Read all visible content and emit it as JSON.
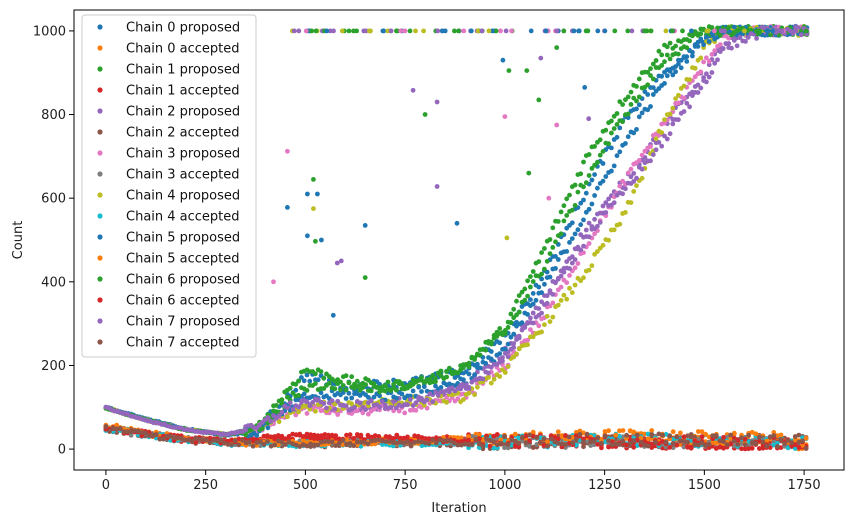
{
  "chart_data": {
    "type": "scatter",
    "title": "",
    "xlabel": "Iteration",
    "ylabel": "Count",
    "xlim": [
      -80,
      1850
    ],
    "ylim": [
      -50,
      1050
    ],
    "x_ticks": [
      0,
      250,
      500,
      750,
      1000,
      1250,
      1500,
      1750
    ],
    "y_ticks": [
      0,
      200,
      400,
      600,
      800,
      1000
    ],
    "grid": false,
    "legend_position": "upper-left",
    "series": [
      {
        "name": "Chain 0 proposed",
        "color": "#1f77b4",
        "kind": "proposed",
        "offset": 0,
        "x": [
          0,
          100,
          200,
          300,
          380,
          450,
          500,
          600,
          700,
          800,
          900,
          1000,
          1100,
          1200,
          1300,
          1400,
          1500,
          1550,
          1650,
          1760
        ],
        "y": [
          100,
          72,
          48,
          34,
          45,
          120,
          175,
          150,
          155,
          165,
          185,
          270,
          420,
          610,
          790,
          900,
          985,
          1000,
          1000,
          1000
        ]
      },
      {
        "name": "Chain 0 accepted",
        "color": "#ff7f0e",
        "kind": "accepted",
        "x": [
          0,
          100,
          200,
          300,
          400,
          500,
          600,
          700,
          800,
          900,
          1000,
          1100,
          1200,
          1300,
          1400,
          1500,
          1600,
          1700,
          1760
        ],
        "y": [
          55,
          38,
          24,
          16,
          14,
          18,
          20,
          22,
          20,
          22,
          24,
          26,
          28,
          30,
          24,
          22,
          24,
          20,
          10
        ]
      },
      {
        "name": "Chain 1 proposed",
        "color": "#2ca02c",
        "kind": "proposed",
        "offset": 0,
        "x": [
          0,
          100,
          200,
          300,
          380,
          450,
          500,
          600,
          700,
          800,
          900,
          1000,
          1100,
          1200,
          1300,
          1400,
          1500,
          1550,
          1650,
          1760
        ],
        "y": [
          98,
          70,
          47,
          34,
          50,
          135,
          190,
          165,
          150,
          160,
          200,
          290,
          480,
          690,
          840,
          960,
          1000,
          1000,
          1000,
          1000
        ]
      },
      {
        "name": "Chain 1 accepted",
        "color": "#d62728",
        "kind": "accepted",
        "x": [
          0,
          100,
          200,
          300,
          400,
          500,
          600,
          700,
          800,
          900,
          1000,
          1100,
          1200,
          1300,
          1400,
          1500,
          1600,
          1700,
          1760
        ],
        "y": [
          52,
          36,
          23,
          17,
          22,
          30,
          28,
          26,
          24,
          22,
          20,
          18,
          18,
          16,
          16,
          14,
          14,
          12,
          10
        ]
      },
      {
        "name": "Chain 2 proposed",
        "color": "#9467bd",
        "kind": "proposed",
        "offset": 0,
        "x": [
          0,
          100,
          200,
          300,
          380,
          450,
          500,
          600,
          700,
          800,
          900,
          1000,
          1100,
          1200,
          1300,
          1400,
          1500,
          1550,
          1650,
          1760
        ],
        "y": [
          99,
          70,
          46,
          35,
          48,
          95,
          110,
          100,
          105,
          120,
          150,
          230,
          360,
          520,
          640,
          770,
          900,
          970,
          1000,
          1000
        ]
      },
      {
        "name": "Chain 2 accepted",
        "color": "#8c564b",
        "kind": "accepted",
        "x": [
          0,
          100,
          200,
          300,
          400,
          500,
          600,
          700,
          800,
          900,
          1000,
          1100,
          1200,
          1300,
          1400,
          1500,
          1600,
          1700,
          1760
        ],
        "y": [
          50,
          35,
          22,
          15,
          13,
          12,
          12,
          13,
          14,
          15,
          16,
          18,
          20,
          20,
          20,
          20,
          20,
          20,
          18
        ]
      },
      {
        "name": "Chain 3 proposed",
        "color": "#e377c2",
        "kind": "proposed",
        "offset": 0,
        "x": [
          0,
          100,
          200,
          300,
          380,
          450,
          500,
          600,
          700,
          800,
          900,
          1000,
          1100,
          1200,
          1300,
          1400,
          1500,
          1550,
          1650,
          1760
        ],
        "y": [
          98,
          70,
          46,
          34,
          45,
          85,
          95,
          90,
          95,
          100,
          125,
          200,
          320,
          480,
          640,
          780,
          920,
          990,
          1000,
          1000
        ]
      },
      {
        "name": "Chain 3 accepted",
        "color": "#7f7f7f",
        "kind": "accepted",
        "x": [
          0,
          100,
          200,
          300,
          400,
          500,
          600,
          700,
          800,
          900,
          1000,
          1100,
          1200,
          1300,
          1400,
          1500,
          1600,
          1700,
          1760
        ],
        "y": [
          50,
          34,
          22,
          16,
          14,
          14,
          15,
          16,
          17,
          18,
          18,
          18,
          18,
          18,
          18,
          18,
          18,
          18,
          16
        ]
      },
      {
        "name": "Chain 4 proposed",
        "color": "#bcbd22",
        "kind": "proposed",
        "offset": 0,
        "x": [
          0,
          100,
          200,
          300,
          380,
          450,
          500,
          600,
          700,
          800,
          900,
          1000,
          1100,
          1200,
          1300,
          1400,
          1500,
          1550,
          1650,
          1760
        ],
        "y": [
          99,
          70,
          47,
          35,
          46,
          85,
          98,
          105,
          115,
          115,
          125,
          190,
          300,
          420,
          560,
          780,
          960,
          1000,
          1000,
          1000
        ]
      },
      {
        "name": "Chain 4 accepted",
        "color": "#17becf",
        "kind": "accepted",
        "x": [
          0,
          100,
          200,
          300,
          400,
          500,
          600,
          700,
          800,
          900,
          1000,
          1100,
          1200,
          1300,
          1400,
          1500,
          1600,
          1700,
          1760
        ],
        "y": [
          51,
          35,
          22,
          15,
          13,
          12,
          13,
          14,
          15,
          16,
          17,
          18,
          20,
          22,
          22,
          20,
          20,
          18,
          14
        ]
      },
      {
        "name": "Chain 5 proposed",
        "color": "#1f77b4",
        "kind": "proposed",
        "offset": 0,
        "x": [
          0,
          100,
          200,
          300,
          380,
          450,
          500,
          600,
          700,
          800,
          900,
          1000,
          1100,
          1200,
          1300,
          1400,
          1500,
          1550,
          1650,
          1760
        ],
        "y": [
          100,
          71,
          47,
          34,
          42,
          90,
          125,
          130,
          125,
          140,
          165,
          240,
          390,
          560,
          730,
          880,
          980,
          1000,
          1000,
          1000
        ]
      },
      {
        "name": "Chain 5 accepted",
        "color": "#ff7f0e",
        "kind": "accepted",
        "x": [
          0,
          100,
          200,
          300,
          400,
          500,
          600,
          700,
          800,
          900,
          1000,
          1100,
          1200,
          1300,
          1400,
          1500,
          1600,
          1700,
          1760
        ],
        "y": [
          55,
          38,
          25,
          17,
          15,
          16,
          17,
          18,
          20,
          22,
          24,
          26,
          30,
          32,
          30,
          28,
          28,
          26,
          12
        ]
      },
      {
        "name": "Chain 6 proposed",
        "color": "#2ca02c",
        "kind": "proposed",
        "offset": 0,
        "x": [
          0,
          100,
          200,
          300,
          380,
          450,
          500,
          600,
          700,
          800,
          900,
          1000,
          1100,
          1200,
          1300,
          1400,
          1500,
          1550,
          1650,
          1760
        ],
        "y": [
          98,
          70,
          46,
          34,
          46,
          110,
          150,
          150,
          145,
          165,
          195,
          280,
          440,
          640,
          800,
          930,
          1000,
          1000,
          1000,
          1000
        ]
      },
      {
        "name": "Chain 6 accepted",
        "color": "#d62728",
        "kind": "accepted",
        "x": [
          0,
          100,
          200,
          300,
          400,
          500,
          600,
          700,
          800,
          900,
          1000,
          1100,
          1200,
          1300,
          1400,
          1500,
          1600,
          1700,
          1760
        ],
        "y": [
          52,
          36,
          24,
          18,
          26,
          32,
          30,
          28,
          25,
          22,
          20,
          18,
          17,
          16,
          16,
          15,
          14,
          12,
          10
        ]
      },
      {
        "name": "Chain 7 proposed",
        "color": "#9467bd",
        "kind": "proposed",
        "offset": 0,
        "x": [
          0,
          100,
          200,
          300,
          380,
          450,
          500,
          600,
          700,
          800,
          900,
          1000,
          1100,
          1200,
          1300,
          1400,
          1500,
          1550,
          1650,
          1760
        ],
        "y": [
          99,
          69,
          46,
          35,
          50,
          98,
          112,
          102,
          106,
          118,
          145,
          220,
          345,
          500,
          620,
          740,
          880,
          960,
          1000,
          1000
        ]
      },
      {
        "name": "Chain 7 accepted",
        "color": "#8c564b",
        "kind": "accepted",
        "x": [
          0,
          100,
          200,
          300,
          400,
          500,
          600,
          700,
          800,
          900,
          1000,
          1100,
          1200,
          1300,
          1400,
          1500,
          1600,
          1700,
          1760
        ],
        "y": [
          50,
          35,
          22,
          15,
          13,
          13,
          14,
          15,
          16,
          17,
          18,
          20,
          22,
          22,
          22,
          22,
          22,
          20,
          16
        ]
      }
    ],
    "outliers": [
      {
        "x": 420,
        "y": 400,
        "color": "#e377c2"
      },
      {
        "x": 455,
        "y": 712,
        "color": "#e377c2"
      },
      {
        "x": 455,
        "y": 578,
        "color": "#1f77b4"
      },
      {
        "x": 505,
        "y": 610,
        "color": "#1f77b4"
      },
      {
        "x": 505,
        "y": 510,
        "color": "#1f77b4"
      },
      {
        "x": 520,
        "y": 645,
        "color": "#2ca02c"
      },
      {
        "x": 520,
        "y": 575,
        "color": "#bcbd22"
      },
      {
        "x": 530,
        "y": 610,
        "color": "#1f77b4"
      },
      {
        "x": 525,
        "y": 497,
        "color": "#2ca02c"
      },
      {
        "x": 540,
        "y": 500,
        "color": "#1f77b4"
      },
      {
        "x": 570,
        "y": 320,
        "color": "#1f77b4"
      },
      {
        "x": 580,
        "y": 445,
        "color": "#9467bd"
      },
      {
        "x": 590,
        "y": 450,
        "color": "#9467bd"
      },
      {
        "x": 650,
        "y": 535,
        "color": "#1f77b4"
      },
      {
        "x": 650,
        "y": 410,
        "color": "#2ca02c"
      },
      {
        "x": 770,
        "y": 858,
        "color": "#9467bd"
      },
      {
        "x": 800,
        "y": 800,
        "color": "#2ca02c"
      },
      {
        "x": 830,
        "y": 830,
        "color": "#9467bd"
      },
      {
        "x": 830,
        "y": 628,
        "color": "#9467bd"
      },
      {
        "x": 880,
        "y": 540,
        "color": "#1f77b4"
      },
      {
        "x": 995,
        "y": 930,
        "color": "#1f77b4"
      },
      {
        "x": 1010,
        "y": 905,
        "color": "#2ca02c"
      },
      {
        "x": 1000,
        "y": 795,
        "color": "#e377c2"
      },
      {
        "x": 1005,
        "y": 505,
        "color": "#bcbd22"
      },
      {
        "x": 1055,
        "y": 905,
        "color": "#2ca02c"
      },
      {
        "x": 1060,
        "y": 660,
        "color": "#2ca02c"
      },
      {
        "x": 1085,
        "y": 835,
        "color": "#2ca02c"
      },
      {
        "x": 1090,
        "y": 935,
        "color": "#9467bd"
      },
      {
        "x": 1110,
        "y": 600,
        "color": "#e377c2"
      },
      {
        "x": 1130,
        "y": 775,
        "color": "#e377c2"
      },
      {
        "x": 1130,
        "y": 960,
        "color": "#2ca02c"
      },
      {
        "x": 1200,
        "y": 865,
        "color": "#1f77b4"
      },
      {
        "x": 1210,
        "y": 790,
        "color": "#9467bd"
      }
    ]
  }
}
